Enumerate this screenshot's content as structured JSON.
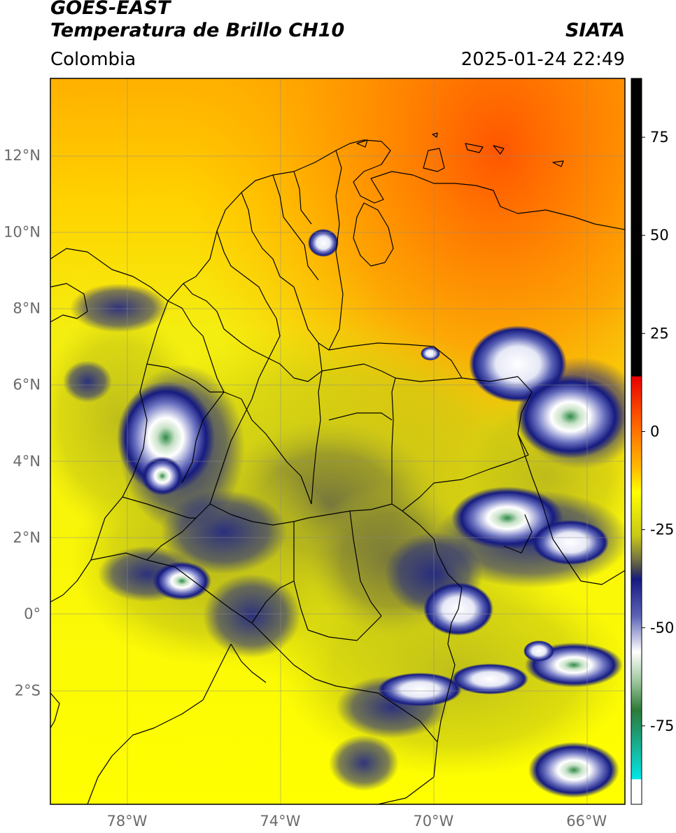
{
  "header": {
    "satellite": "GOES-EAST",
    "product": "Temperatura de Brillo CH10",
    "region": "Colombia",
    "brand": "SIATA",
    "timestamp": "2025-01-24 22:49"
  },
  "map": {
    "lon_range": [
      -80,
      -65
    ],
    "lat_range": [
      -5,
      14
    ],
    "lat_ticks": [
      {
        "value": 12,
        "label": "12°N"
      },
      {
        "value": 10,
        "label": "10°N"
      },
      {
        "value": 8,
        "label": "8°N"
      },
      {
        "value": 6,
        "label": "6°N"
      },
      {
        "value": 4,
        "label": "4°N"
      },
      {
        "value": 2,
        "label": "2°N"
      },
      {
        "value": 0,
        "label": "0°"
      },
      {
        "value": -2,
        "label": "2°S"
      }
    ],
    "lon_ticks": [
      {
        "value": -78,
        "label": "78°W"
      },
      {
        "value": -74,
        "label": "74°W"
      },
      {
        "value": -70,
        "label": "70°W"
      },
      {
        "value": -66,
        "label": "66°W"
      }
    ],
    "grid": true
  },
  "colorbar": {
    "range": [
      -95,
      90
    ],
    "ticks": [
      {
        "value": 75,
        "label": "75"
      },
      {
        "value": 50,
        "label": "50"
      },
      {
        "value": 25,
        "label": "25"
      },
      {
        "value": 0,
        "label": "0"
      },
      {
        "value": -25,
        "label": "-25"
      },
      {
        "value": -50,
        "label": "-50"
      },
      {
        "value": -75,
        "label": "-75"
      }
    ],
    "colors": {
      "black": "#000000",
      "red": "#e80000",
      "orange": "#ff8000",
      "yellow": "#ffff00",
      "olive": "#6b6b3a",
      "navy": "#161b80",
      "white": "#ffffff",
      "green": "#2e8b3c",
      "cyan": "#00e0e0"
    }
  }
}
